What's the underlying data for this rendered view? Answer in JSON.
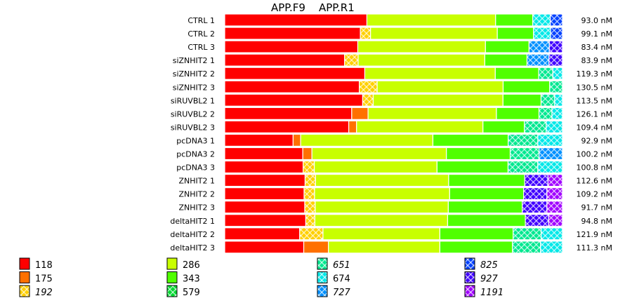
{
  "chart_data": {
    "type": "bar",
    "orientation": "horizontal",
    "stacked": true,
    "normalized": true,
    "title": "",
    "header_labels": [
      "APP.F9",
      "APP.R1"
    ],
    "xlabel": "",
    "ylabel": "",
    "categories": [
      "CTRL 1",
      "CTRL 2",
      "CTRL 3",
      "siZNHIT2 1",
      "siZNHIT2 2",
      "siZNHIT2 3",
      "siRUVBL2 1",
      "siRUVBL2 2",
      "siRUVBL2 3",
      "pcDNA3 1",
      "pcDNA3 2",
      "pcDNA3 3",
      "ZNHIT2 1",
      "ZNHIT2 2",
      "ZNHIT2 3",
      "deltaHIT2 1",
      "deltaHIT2 2",
      "deltaHIT2 3"
    ],
    "totals": [
      "93.0 nM",
      "99.1 nM",
      "83.4 nM",
      "83.9 nM",
      "119.3 nM",
      "130.5 nM",
      "113.5 nM",
      "126.1 nM",
      "109.4 nM",
      "92.9 nM",
      "100.2 nM",
      "100.8 nM",
      "112.6 nM",
      "109.2 nM",
      "91.7 nM",
      "94.8 nM",
      "121.9 nM",
      "111.3 nM"
    ],
    "series": [
      {
        "name": "118",
        "color": "#ff0000",
        "pattern": "solid",
        "italic": false,
        "values": [
          0.421,
          0.412,
          0.394,
          0.355,
          0.394,
          0.39,
          0.406,
          0.373,
          0.365,
          0.208,
          0.23,
          0.232,
          0.238,
          0.235,
          0.237,
          0.24,
          0.222,
          0.234
        ]
      },
      {
        "name": "175",
        "color": "#ff7000",
        "pattern": "solid",
        "italic": false,
        "values": [
          0,
          0,
          0,
          0,
          0,
          0,
          0,
          0.048,
          0.023,
          0.023,
          0.027,
          0,
          0,
          0,
          0,
          0,
          0,
          0.073
        ]
      },
      {
        "name": "192",
        "color": "#ffd000",
        "pattern": "checker",
        "italic": true,
        "values": [
          0,
          0.031,
          0,
          0.04,
          0,
          0.052,
          0.031,
          0,
          0,
          0,
          0,
          0.033,
          0.031,
          0.031,
          0.031,
          0.027,
          0.069,
          0
        ]
      },
      {
        "name": "286",
        "color": "#c8ff00",
        "pattern": "solid",
        "italic": false,
        "values": [
          0.381,
          0.385,
          0.378,
          0.375,
          0.367,
          0.365,
          0.382,
          0.377,
          0.372,
          0.402,
          0.396,
          0.363,
          0.394,
          0.4,
          0.394,
          0.393,
          0.346,
          0.33
        ]
      },
      {
        "name": "343",
        "color": "#50ff00",
        "pattern": "solid",
        "italic": false,
        "values": [
          0.11,
          0.11,
          0.129,
          0.125,
          0.122,
          0.135,
          0.112,
          0.125,
          0.122,
          0.229,
          0.188,
          0.21,
          0.225,
          0.219,
          0.219,
          0.23,
          0.217,
          0.215
        ]
      },
      {
        "name": "579",
        "color": "#00d830",
        "pattern": "checker",
        "italic": false,
        "values": [
          0,
          0,
          0,
          0,
          0,
          0,
          0,
          0,
          0,
          0,
          0,
          0,
          0,
          0,
          0,
          0,
          0,
          0
        ]
      },
      {
        "name": "651",
        "color": "#00e890",
        "pattern": "checker",
        "italic": true,
        "values": [
          0,
          0,
          0,
          0,
          0.04,
          0.037,
          0.04,
          0.038,
          0.064,
          0.09,
          0.085,
          0.088,
          0,
          0,
          0,
          0,
          0.083,
          0.083
        ]
      },
      {
        "name": "674",
        "color": "#00e8e8",
        "pattern": "checker",
        "italic": false,
        "values": [
          0.052,
          0.052,
          0,
          0,
          0.027,
          0,
          0.023,
          0.031,
          0.048,
          0.075,
          0,
          0.073,
          0,
          0,
          0,
          0,
          0.063,
          0.065
        ]
      },
      {
        "name": "727",
        "color": "#0090ff",
        "pattern": "checker",
        "italic": true,
        "values": [
          0,
          0,
          0.06,
          0.065,
          0,
          0,
          0,
          0,
          0,
          0,
          0.069,
          0,
          0,
          0,
          0,
          0,
          0,
          0
        ]
      },
      {
        "name": "825",
        "color": "#0040ff",
        "pattern": "checker",
        "italic": true,
        "values": [
          0.036,
          0.036,
          0,
          0,
          0,
          0,
          0,
          0,
          0,
          0,
          0,
          0,
          0,
          0,
          0,
          0,
          0,
          0
        ]
      },
      {
        "name": "927",
        "color": "#4000ff",
        "pattern": "checker",
        "italic": true,
        "values": [
          0,
          0,
          0.039,
          0.04,
          0,
          0,
          0,
          0,
          0,
          0,
          0,
          0,
          0.069,
          0.069,
          0.073,
          0.069,
          0,
          0
        ]
      },
      {
        "name": "1191",
        "color": "#a000ff",
        "pattern": "checker",
        "italic": true,
        "values": [
          0,
          0,
          0,
          0,
          0,
          0,
          0,
          0,
          0,
          0,
          0,
          0,
          0.043,
          0.046,
          0.046,
          0.041,
          0,
          0
        ]
      }
    ]
  }
}
